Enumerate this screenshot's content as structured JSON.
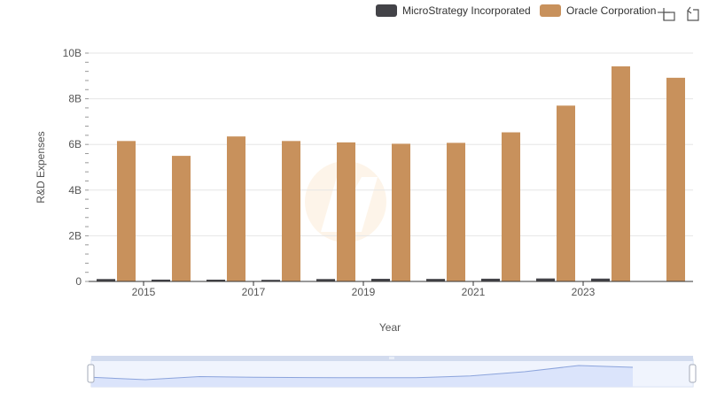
{
  "chart_data": {
    "type": "bar",
    "title": "",
    "xlabel": "Year",
    "ylabel": "R&D Expenses",
    "ylim": [
      0,
      10000000000
    ],
    "yticks": [
      {
        "value": 0,
        "label": "0"
      },
      {
        "value": 2000000000,
        "label": "2B"
      },
      {
        "value": 4000000000,
        "label": "4B"
      },
      {
        "value": 6000000000,
        "label": "6B"
      },
      {
        "value": 8000000000,
        "label": "8B"
      },
      {
        "value": 10000000000,
        "label": "10B"
      }
    ],
    "categories": [
      "2014",
      "2015",
      "2016",
      "2017",
      "2018",
      "2019",
      "2020",
      "2021",
      "2022",
      "2023",
      "2024"
    ],
    "x_tick_labels": [
      "2015",
      "2017",
      "2019",
      "2021",
      "2023"
    ],
    "series": [
      {
        "name": "MicroStrategy Incorporated",
        "color": "#434348",
        "values": [
          105000000,
          80000000,
          78000000,
          70000000,
          105000000,
          115000000,
          110000000,
          120000000,
          130000000,
          125000000,
          null
        ]
      },
      {
        "name": "Oracle Corporation",
        "color": "#c8915c",
        "values": [
          6150000000,
          5500000000,
          6350000000,
          6150000000,
          6090000000,
          6030000000,
          6070000000,
          6530000000,
          7700000000,
          9420000000,
          8920000000
        ]
      }
    ],
    "legend_position": "top-right",
    "grid": true
  },
  "colors": {
    "navigator_line": "#8ca4dc",
    "navigator_fill": "#dbe4fb",
    "navigator_mask": "#e6ecfb"
  },
  "icons": [
    "zoom-in-icon",
    "zoom-reset-icon"
  ]
}
